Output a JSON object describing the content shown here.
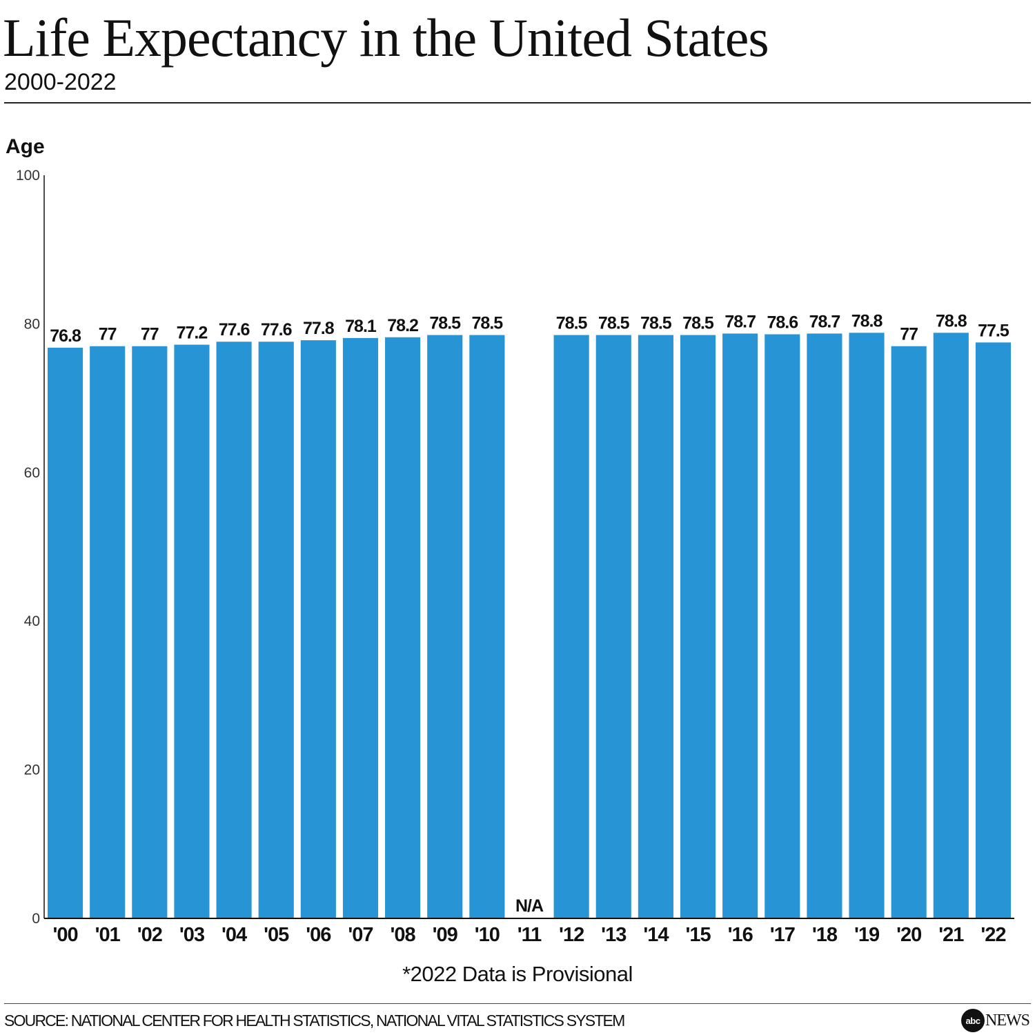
{
  "header": {
    "title": "Life Expectancy in the United States",
    "subtitle": "2000-2022"
  },
  "footer": {
    "note": "*2022 Data is Provisional",
    "source": "SOURCE: NATIONAL CENTER FOR HEALTH STATISTICS, NATIONAL VITAL STATISTICS SYSTEM",
    "logo_mark": "abc",
    "logo_text": "NEWS"
  },
  "chart_data": {
    "type": "bar",
    "title": "Life Expectancy in the United States",
    "subtitle": "2000-2022",
    "xlabel": "",
    "ylabel": "Age",
    "ylim": [
      0,
      100
    ],
    "yticks": [
      0,
      20,
      40,
      60,
      80,
      100
    ],
    "grid": false,
    "bar_color": "#2794d6",
    "categories": [
      "'00",
      "'01",
      "'02",
      "'03",
      "'04",
      "'05",
      "'06",
      "'07",
      "'08",
      "'09",
      "'10",
      "'11",
      "'12",
      "'13",
      "'14",
      "'15",
      "'16",
      "'17",
      "'18",
      "'19",
      "'20",
      "'21",
      "'22"
    ],
    "values": [
      76.8,
      77,
      77,
      77.2,
      77.6,
      77.6,
      77.8,
      78.1,
      78.2,
      78.5,
      78.5,
      null,
      78.5,
      78.5,
      78.5,
      78.5,
      78.7,
      78.6,
      78.7,
      78.8,
      77,
      78.8,
      77.5
    ],
    "labels": [
      "76.8",
      "77",
      "77",
      "77.2",
      "77.6",
      "77.6",
      "77.8",
      "78.1",
      "78.2",
      "78.5",
      "78.5",
      "N/A",
      "78.5",
      "78.5",
      "78.5",
      "78.5",
      "78.7",
      "78.6",
      "78.7",
      "78.8",
      "77",
      "78.8",
      "77.5"
    ],
    "annotations": [
      "*2022 Data is Provisional"
    ]
  }
}
